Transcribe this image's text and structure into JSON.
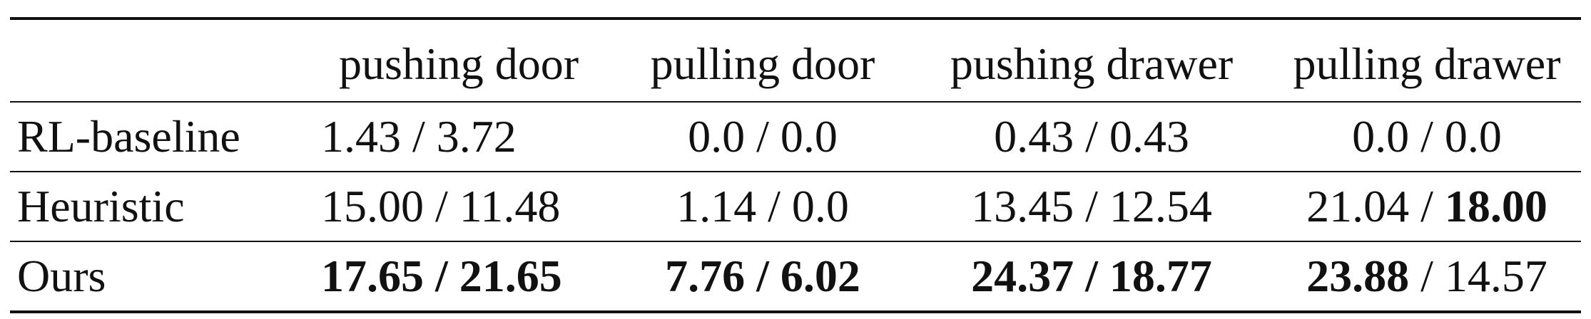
{
  "table": {
    "header": {
      "corner": "",
      "columns": [
        "pushing door",
        "pulling door",
        "pushing drawer",
        "pulling drawer"
      ]
    },
    "rows": [
      {
        "label": "RL-baseline",
        "cells": [
          {
            "a": "1.43",
            "sep": " / ",
            "b": "3.72",
            "a_bold": false,
            "b_bold": false
          },
          {
            "a": "0.0",
            "sep": " / ",
            "b": "0.0",
            "a_bold": false,
            "b_bold": false
          },
          {
            "a": "0.43",
            "sep": " / ",
            "b": "0.43",
            "a_bold": false,
            "b_bold": false
          },
          {
            "a": "0.0",
            "sep": " / ",
            "b": "0.0",
            "a_bold": false,
            "b_bold": false
          }
        ]
      },
      {
        "label": "Heuristic",
        "cells": [
          {
            "a": "15.00",
            "sep": " / ",
            "b": "11.48",
            "a_bold": false,
            "b_bold": false
          },
          {
            "a": "1.14",
            "sep": " / ",
            "b": "0.0",
            "a_bold": false,
            "b_bold": false
          },
          {
            "a": "13.45",
            "sep": " / ",
            "b": "12.54",
            "a_bold": false,
            "b_bold": false
          },
          {
            "a": "21.04",
            "sep": " / ",
            "b": "18.00",
            "a_bold": false,
            "b_bold": true
          }
        ]
      },
      {
        "label": "Ours",
        "cells": [
          {
            "a": "17.65",
            "sep": " / ",
            "b": "21.65",
            "a_bold": true,
            "b_bold": true
          },
          {
            "a": "7.76",
            "sep": " / ",
            "b": "6.02",
            "a_bold": true,
            "b_bold": true
          },
          {
            "a": "24.37",
            "sep": " / ",
            "b": "18.77",
            "a_bold": true,
            "b_bold": true
          },
          {
            "a": "23.88",
            "sep": " / ",
            "b": "14.57",
            "a_bold": true,
            "b_bold": false
          }
        ]
      }
    ]
  }
}
